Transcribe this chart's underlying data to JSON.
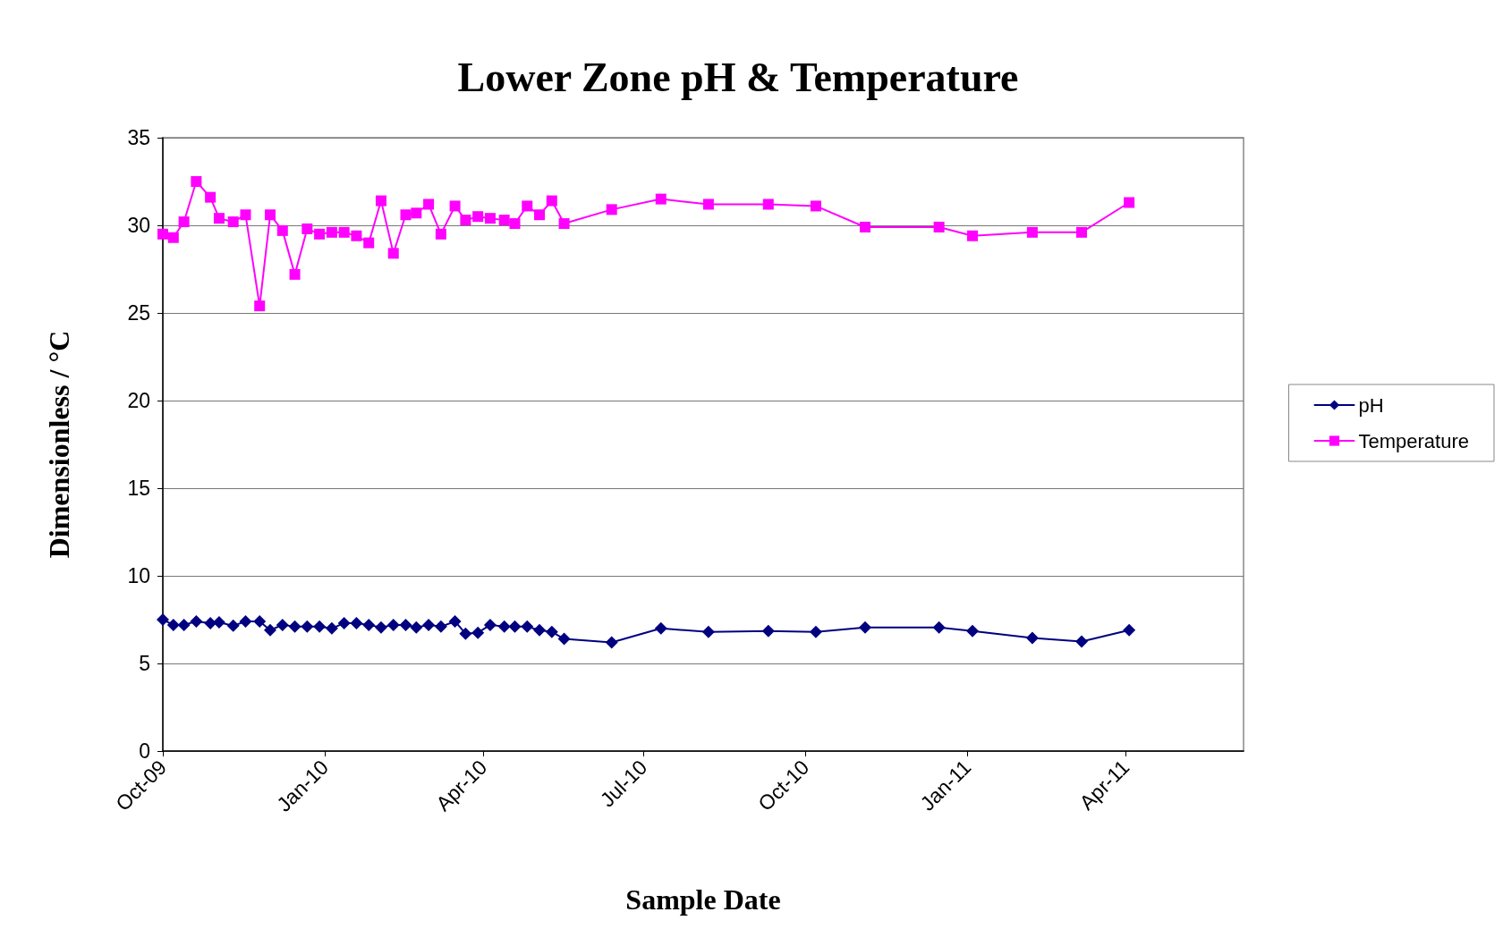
{
  "chart_data": {
    "type": "line",
    "title": "Lower Zone pH & Temperature",
    "xlabel": "Sample Date",
    "ylabel": "Dimensionless / °C",
    "x": [
      "2009-10-01",
      "2009-10-07",
      "2009-10-13",
      "2009-10-20",
      "2009-10-28",
      "2009-11-02",
      "2009-11-10",
      "2009-11-17",
      "2009-11-25",
      "2009-12-01",
      "2009-12-08",
      "2009-12-15",
      "2009-12-22",
      "2009-12-29",
      "2010-01-05",
      "2010-01-12",
      "2010-01-19",
      "2010-01-26",
      "2010-02-02",
      "2010-02-09",
      "2010-02-16",
      "2010-02-22",
      "2010-03-01",
      "2010-03-08",
      "2010-03-16",
      "2010-03-22",
      "2010-03-29",
      "2010-04-05",
      "2010-04-13",
      "2010-04-19",
      "2010-04-26",
      "2010-05-03",
      "2010-05-10",
      "2010-05-17",
      "2010-06-13",
      "2010-07-11",
      "2010-08-07",
      "2010-09-10",
      "2010-10-07",
      "2010-11-04",
      "2010-12-16",
      "2011-01-04",
      "2011-02-07",
      "2011-03-07",
      "2011-04-03"
    ],
    "series": [
      {
        "name": "pH",
        "color": "#000080",
        "marker": "diamond",
        "values": [
          7.5,
          7.2,
          7.2,
          7.4,
          7.3,
          7.35,
          7.15,
          7.4,
          7.4,
          6.9,
          7.2,
          7.1,
          7.1,
          7.1,
          7.0,
          7.3,
          7.3,
          7.2,
          7.05,
          7.2,
          7.2,
          7.05,
          7.2,
          7.1,
          7.4,
          6.7,
          6.75,
          7.2,
          7.1,
          7.1,
          7.1,
          6.9,
          6.8,
          6.4,
          6.2,
          7.0,
          6.8,
          6.85,
          6.8,
          7.05,
          7.05,
          6.85,
          6.45,
          6.25,
          6.9
        ]
      },
      {
        "name": "Temperature",
        "color": "#ff00ff",
        "marker": "square",
        "values": [
          29.5,
          29.3,
          30.2,
          32.5,
          31.6,
          30.4,
          30.2,
          30.6,
          25.4,
          30.6,
          29.7,
          27.2,
          29.8,
          29.5,
          29.6,
          29.6,
          29.4,
          29.0,
          31.4,
          28.4,
          30.6,
          30.7,
          31.2,
          29.5,
          31.1,
          30.3,
          30.5,
          30.4,
          30.3,
          30.1,
          31.1,
          30.6,
          31.4,
          30.1,
          30.9,
          31.5,
          31.2,
          31.2,
          31.1,
          29.9,
          29.9,
          29.4,
          29.6,
          29.6,
          31.3
        ]
      }
    ],
    "xlim": [
      "2009-10-01",
      "2011-06-07"
    ],
    "xticks": [
      {
        "value": "2009-10-01",
        "label": "Oct-09"
      },
      {
        "value": "2010-01-01",
        "label": "Jan-10"
      },
      {
        "value": "2010-04-01",
        "label": "Apr-10"
      },
      {
        "value": "2010-07-01",
        "label": "Jul-10"
      },
      {
        "value": "2010-10-01",
        "label": "Oct-10"
      },
      {
        "value": "2011-01-01",
        "label": "Jan-11"
      },
      {
        "value": "2011-04-01",
        "label": "Apr-11"
      }
    ],
    "ylim": [
      0,
      35
    ],
    "yticks": [
      0,
      5,
      10,
      15,
      20,
      25,
      30,
      35
    ],
    "grid": "y",
    "legend": "right"
  }
}
